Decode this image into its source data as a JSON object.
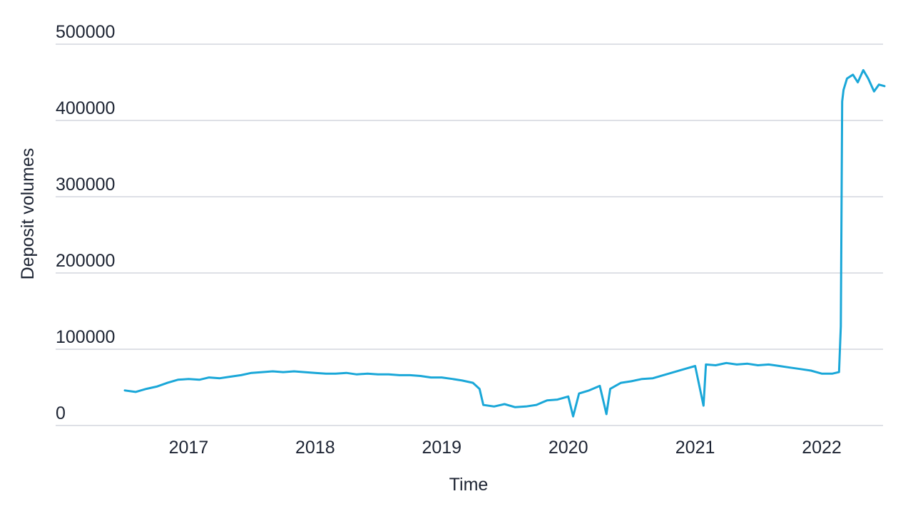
{
  "chart_data": {
    "type": "line",
    "title": "",
    "xlabel": "Time",
    "ylabel": "Deposit volumes",
    "x_ticks": [
      "2017",
      "2018",
      "2019",
      "2020",
      "2021",
      "2022"
    ],
    "y_ticks": [
      "0",
      "100000",
      "200000",
      "300000",
      "400000",
      "500000"
    ],
    "xlim": [
      "2016-07-01",
      "2022-07-01"
    ],
    "ylim": [
      0,
      500000
    ],
    "grid": "horizontal",
    "legend": "none",
    "color": "#1aa7d8",
    "series": [
      {
        "x": [
          "2016-07-01",
          "2016-08-01",
          "2016-09-01",
          "2016-10-01",
          "2016-11-01",
          "2016-12-01",
          "2017-01-01",
          "2017-02-01",
          "2017-03-01",
          "2017-04-01",
          "2017-05-01",
          "2017-06-01",
          "2017-07-01",
          "2017-08-01",
          "2017-09-01",
          "2017-10-01",
          "2017-11-01",
          "2017-12-01",
          "2018-01-01",
          "2018-02-01",
          "2018-03-01",
          "2018-04-01",
          "2018-05-01",
          "2018-06-01",
          "2018-07-01",
          "2018-08-01",
          "2018-09-01",
          "2018-10-01",
          "2018-11-01",
          "2018-12-01",
          "2019-01-01",
          "2019-02-01",
          "2019-03-01",
          "2019-04-01",
          "2019-04-20",
          "2019-05-01",
          "2019-06-01",
          "2019-07-01",
          "2019-08-01",
          "2019-09-01",
          "2019-10-01",
          "2019-11-01",
          "2019-12-01",
          "2020-01-01",
          "2020-01-15",
          "2020-02-01",
          "2020-03-01",
          "2020-04-01",
          "2020-04-20",
          "2020-05-01",
          "2020-06-01",
          "2020-07-01",
          "2020-08-01",
          "2020-09-01",
          "2020-10-01",
          "2020-11-01",
          "2020-12-01",
          "2021-01-01",
          "2021-01-25",
          "2021-02-01",
          "2021-03-01",
          "2021-04-01",
          "2021-05-01",
          "2021-06-01",
          "2021-07-01",
          "2021-08-01",
          "2021-09-01",
          "2021-10-01",
          "2021-11-01",
          "2021-12-01",
          "2022-01-01",
          "2022-02-01",
          "2022-02-20",
          "2022-02-25",
          "2022-03-01",
          "2022-03-05",
          "2022-03-15",
          "2022-04-01",
          "2022-04-15",
          "2022-05-01",
          "2022-05-15",
          "2022-06-01",
          "2022-06-15",
          "2022-07-01"
        ],
        "values": [
          46000,
          44000,
          48000,
          51000,
          56000,
          60000,
          61000,
          60000,
          63000,
          62000,
          64000,
          66000,
          69000,
          70000,
          71000,
          70000,
          71000,
          70000,
          69000,
          68000,
          68000,
          69000,
          67000,
          68000,
          67000,
          67000,
          66000,
          66000,
          65000,
          63000,
          63000,
          61000,
          59000,
          56000,
          48000,
          27000,
          25000,
          28000,
          24000,
          25000,
          27000,
          33000,
          34000,
          38000,
          12000,
          42000,
          46000,
          52000,
          15000,
          48000,
          56000,
          58000,
          61000,
          62000,
          66000,
          70000,
          74000,
          78000,
          26000,
          80000,
          79000,
          82000,
          80000,
          81000,
          79000,
          80000,
          78000,
          76000,
          74000,
          72000,
          68000,
          68000,
          70000,
          130000,
          425000,
          440000,
          455000,
          460000,
          450000,
          466000,
          455000,
          438000,
          447000,
          445000
        ]
      }
    ]
  }
}
